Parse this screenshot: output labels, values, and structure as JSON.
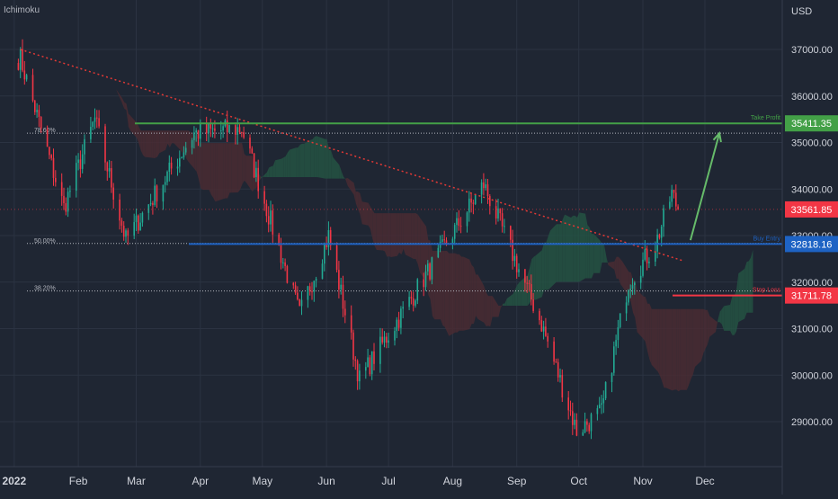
{
  "indicator_label": "Ichimoku",
  "currency_label": "USD",
  "colors": {
    "background": "#1f2633",
    "grid": "#2b3342",
    "axis_text": "#d1d4dc",
    "candle_up": "#22ab94",
    "candle_down": "#f23645",
    "cloud_green": "#245443",
    "cloud_red": "#4a2c33",
    "take_profit": "#43a047",
    "buy_entry": "#1e63c4",
    "stop_loss": "#f23645",
    "last_price": "#f23645",
    "trendline": "#e53935",
    "fib_line": "#b2b5be",
    "arrow": "#66bb6a"
  },
  "chart_data": {
    "type": "candlestick",
    "title": "",
    "ylabel": "USD",
    "ylim": [
      28000,
      38200
    ],
    "price_scale": "right",
    "grid": true,
    "x_labels": [
      "2022",
      "Feb",
      "Mar",
      "Apr",
      "May",
      "Jun",
      "Jul",
      "Aug",
      "Sep",
      "Oct",
      "Nov",
      "Dec"
    ],
    "y_ticks": [
      29000,
      30000,
      31000,
      32000,
      33000,
      34000,
      35000,
      36000,
      37000
    ],
    "levels": [
      {
        "name": "take_profit",
        "label": "Take Profit",
        "value": 35411.35,
        "value_text": "35411.35"
      },
      {
        "name": "buy_entry",
        "label": "Buy Entry",
        "value": 32818.16,
        "value_text": "32818.16"
      },
      {
        "name": "stop_loss",
        "label": "Stop Loss",
        "value": 31711.78,
        "value_text": "31711.78"
      },
      {
        "name": "last_price",
        "label": "",
        "value": 33561.85,
        "value_text": "33561.85"
      }
    ],
    "fib_levels": [
      {
        "label": "78.60%",
        "value": 35200
      },
      {
        "label": "50.00%",
        "value": 32830
      },
      {
        "label": "38.20%",
        "value": 31810
      }
    ],
    "trendline": {
      "from": {
        "x": "2022-01-04",
        "y": 37000
      },
      "to": {
        "x": "2022-11-21",
        "y": 32450
      }
    },
    "forecast_arrow": {
      "from": {
        "x": "2022-11-24",
        "y": 32900
      },
      "to": {
        "x": "2022-12-08",
        "y": 35200
      }
    },
    "key_closes": [
      {
        "x": "2022-01-04",
        "y": 36800
      },
      {
        "x": "2022-01-25",
        "y": 33600
      },
      {
        "x": "2022-02-09",
        "y": 35500
      },
      {
        "x": "2022-02-24",
        "y": 32900
      },
      {
        "x": "2022-03-29",
        "y": 35200
      },
      {
        "x": "2022-04-21",
        "y": 35300
      },
      {
        "x": "2022-05-19",
        "y": 31300
      },
      {
        "x": "2022-06-02",
        "y": 33000
      },
      {
        "x": "2022-06-17",
        "y": 29900
      },
      {
        "x": "2022-08-16",
        "y": 34100
      },
      {
        "x": "2022-09-13",
        "y": 31100
      },
      {
        "x": "2022-09-30",
        "y": 28800
      },
      {
        "x": "2022-10-12",
        "y": 29200
      },
      {
        "x": "2022-10-25",
        "y": 32000
      },
      {
        "x": "2022-11-07",
        "y": 32800
      },
      {
        "x": "2022-11-15",
        "y": 33900
      },
      {
        "x": "2022-11-18",
        "y": 33561.85
      }
    ]
  }
}
